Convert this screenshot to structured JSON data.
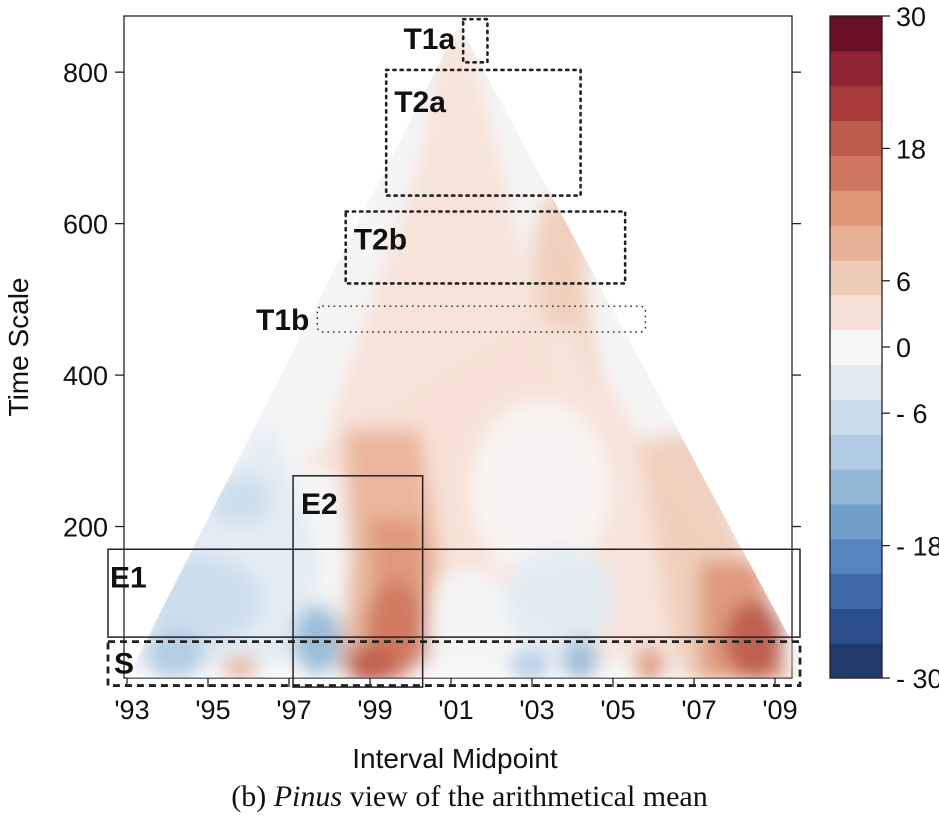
{
  "chart_data": {
    "type": "heatmap",
    "shape": "triangle",
    "xlabel": "Interval Midpoint",
    "ylabel": "Time Scale",
    "x_tick_labels": [
      "'93",
      "'95",
      "'97",
      "'99",
      "'01",
      "'03",
      "'05",
      "'07",
      "'09"
    ],
    "x_tick_years": [
      1993,
      1995,
      1997,
      1999,
      2001,
      2003,
      2005,
      2007,
      2009
    ],
    "x_range": [
      1992.5,
      2009.7
    ],
    "y_ticks": [
      200,
      400,
      600,
      800
    ],
    "y_range": [
      0,
      870
    ],
    "colorbar": {
      "range": [
        -30,
        30
      ],
      "levels": [
        -30,
        -27,
        -24,
        -21,
        -18,
        -15,
        -12,
        -9,
        -6,
        -3,
        3,
        6,
        9,
        12,
        15,
        18,
        21,
        24,
        27,
        30
      ],
      "colors": [
        "#1f3a6b",
        "#2c4f8c",
        "#3d69aa",
        "#5685bd",
        "#729fca",
        "#92b7d6",
        "#b0cbe3",
        "#cadcec",
        "#e0eaf3",
        "#f6f6f6",
        "#f6e1d6",
        "#efccb9",
        "#e8b197",
        "#de9677",
        "#cf775e",
        "#bd5b4c",
        "#a83c3c",
        "#8e2333",
        "#6a0e26"
      ],
      "tick_labels": [
        "30",
        "18",
        "6",
        "0",
        "- 6",
        "- 18",
        "- 30"
      ],
      "tick_values": [
        30,
        18,
        6,
        0,
        -6,
        -18,
        -30
      ]
    },
    "regions": [
      {
        "label": "T1a",
        "style": "dotted",
        "x": [
          2001.3,
          2001.9
        ],
        "y": [
          813,
          870
        ]
      },
      {
        "label": "T2a",
        "style": "dotted",
        "x": [
          1999.4,
          2004.2
        ],
        "y": [
          637,
          803
        ]
      },
      {
        "label": "T2b",
        "style": "dotted",
        "x": [
          1998.4,
          2005.3
        ],
        "y": [
          521,
          616
        ]
      },
      {
        "label": "T1b",
        "style": "dotted",
        "x": [
          1997.7,
          2005.8
        ],
        "y": [
          457,
          491
        ]
      },
      {
        "label": "E2",
        "style": "solid",
        "x": [
          1997.1,
          2000.3
        ],
        "y": [
          -12,
          267
        ]
      },
      {
        "label": "E1",
        "style": "solid",
        "x": [
          1992.5,
          2009.8
        ],
        "y": [
          54,
          170
        ]
      },
      {
        "label": "S",
        "style": "dashed",
        "x": [
          1992.5,
          2009.8
        ],
        "y": [
          -10,
          48
        ]
      }
    ]
  },
  "caption": {
    "prefix": "(b) ",
    "italic": "Pinus",
    "suffix": " view of the arithmetical mean"
  }
}
